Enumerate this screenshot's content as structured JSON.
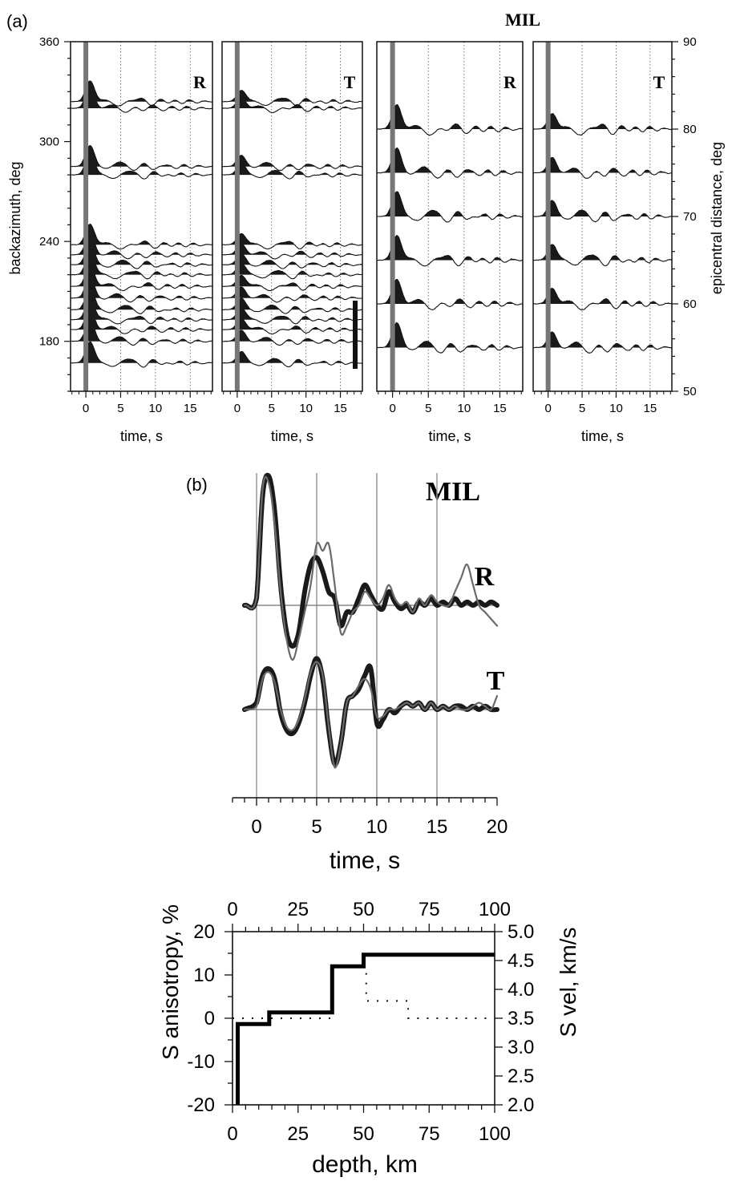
{
  "chart_data": [
    {
      "panel_label": "(a)",
      "type": "line",
      "title": "MIL",
      "subpanels": [
        {
          "component": "R",
          "xlabel": "time, s",
          "xlim": [
            -2.2,
            18.2
          ],
          "xticks": [
            0,
            5,
            10,
            15
          ],
          "ylabel": "backazimuth, deg",
          "ylim": [
            150,
            360
          ],
          "yticks": [
            180,
            240,
            300,
            360
          ],
          "trace_baselines": [
            167,
            180,
            187,
            193,
            199,
            206,
            213,
            220,
            226,
            232,
            238,
            280,
            285,
            320,
            324
          ]
        },
        {
          "component": "T",
          "xlabel": "time, s",
          "xlim": [
            -2.2,
            18.2
          ],
          "xticks": [
            0,
            5,
            10,
            15
          ],
          "ylim": [
            150,
            360
          ],
          "trace_baselines": [
            167,
            180,
            187,
            193,
            199,
            206,
            213,
            220,
            226,
            232,
            238,
            280,
            285,
            320,
            324
          ]
        },
        {
          "component": "R",
          "xlabel": "time, s",
          "xlim": [
            -2.2,
            18.2
          ],
          "xticks": [
            0,
            5,
            10,
            15
          ],
          "ylim": [
            50,
            90
          ],
          "trace_baselines": [
            55,
            60,
            65,
            70,
            75,
            80
          ]
        },
        {
          "component": "T",
          "xlabel": "time, s",
          "xlim": [
            -2.2,
            18.2
          ],
          "xticks": [
            0,
            5,
            10,
            15
          ],
          "ylabel": "epicentral distance, deg",
          "ylim": [
            50,
            90
          ],
          "yticks": [
            50,
            60,
            70,
            80,
            90
          ],
          "trace_baselines": [
            55,
            60,
            65,
            70,
            75,
            80
          ]
        }
      ]
    },
    {
      "panel_label": "(b)",
      "type": "line",
      "title": "MIL",
      "xlabel": "time, s",
      "xlim": [
        -2,
        20
      ],
      "xticks": [
        0,
        5,
        10,
        15,
        20
      ],
      "series": [
        {
          "component": "R",
          "kind": "observed",
          "x": [
            -1,
            0,
            0.5,
            1,
            1.5,
            2,
            2.5,
            3,
            3.5,
            4,
            4.5,
            5,
            5.5,
            6,
            6.5,
            7,
            7.5,
            8,
            8.5,
            9,
            9.5,
            10,
            10.5,
            11,
            11.5,
            12,
            12.5,
            13,
            13.5,
            14,
            14.5,
            15,
            15.5,
            16,
            16.5,
            17,
            17.5,
            18,
            18.5,
            19,
            19.5,
            20
          ],
          "y": [
            0,
            0.1,
            1.6,
            1.9,
            1.4,
            0.3,
            -0.4,
            -0.6,
            -0.4,
            0.2,
            0.6,
            0.7,
            0.5,
            0.2,
            0.1,
            -0.3,
            -0.1,
            -0.1,
            0.1,
            0.3,
            0.15,
            0,
            -0.05,
            0.2,
            0.05,
            -0.05,
            0,
            -0.1,
            0.05,
            0,
            0.1,
            0,
            0.05,
            0,
            0.1,
            0,
            0.05,
            0,
            0.05,
            0,
            0.05,
            0
          ]
        },
        {
          "component": "R",
          "kind": "synthetic",
          "x": [
            -1,
            0,
            0.5,
            1,
            1.5,
            2,
            2.5,
            3,
            3.5,
            4,
            4.5,
            5,
            5.5,
            6,
            6.5,
            7,
            7.5,
            8,
            8.5,
            9,
            9.5,
            10,
            10.5,
            11,
            11.5,
            12,
            12.5,
            13,
            13.5,
            14,
            14.5,
            15,
            15.5,
            16,
            16.5,
            17,
            17.5,
            18,
            18.5,
            19,
            19.5,
            20
          ],
          "y": [
            0,
            0.1,
            1.7,
            1.8,
            1.2,
            0.2,
            -0.5,
            -0.8,
            -0.5,
            -0.1,
            0.3,
            0.9,
            0.8,
            0.9,
            0.3,
            -0.4,
            -0.3,
            -0.1,
            0.0,
            0.2,
            0.1,
            0,
            0.1,
            0.3,
            0.1,
            0,
            0.05,
            -0.1,
            0.1,
            0,
            0.15,
            0.05,
            0,
            0,
            0.2,
            0.4,
            0.6,
            0.3,
            0,
            -0.1,
            -0.2,
            -0.3
          ]
        },
        {
          "component": "T",
          "kind": "observed",
          "x": [
            -1,
            0,
            0.5,
            1,
            1.5,
            2,
            2.5,
            3,
            3.5,
            4,
            4.5,
            5,
            5.5,
            6,
            6.5,
            7,
            7.5,
            8,
            8.5,
            9,
            9.5,
            10,
            10.5,
            11,
            11.5,
            12,
            12.5,
            13,
            13.5,
            14,
            14.5,
            15,
            15.5,
            16,
            16.5,
            17,
            17.5,
            18,
            18.5,
            19,
            19.5,
            20
          ],
          "y": [
            0,
            0.1,
            0.5,
            0.6,
            0.45,
            -0.05,
            -0.3,
            -0.35,
            -0.2,
            0.1,
            0.5,
            0.75,
            0.45,
            -0.3,
            -0.8,
            -0.5,
            0.1,
            0.2,
            0.3,
            0.5,
            0.6,
            -0.2,
            -0.15,
            0,
            -0.05,
            0.05,
            0.1,
            0.05,
            0.1,
            0,
            0.1,
            0,
            0.05,
            0,
            0.05,
            0.05,
            0,
            0.05,
            0,
            0.05,
            0,
            0
          ]
        },
        {
          "component": "T",
          "kind": "synthetic",
          "x": [
            -1,
            0,
            0.5,
            1,
            1.5,
            2,
            2.5,
            3,
            3.5,
            4,
            4.5,
            5,
            5.5,
            6,
            6.5,
            7,
            7.5,
            8,
            8.5,
            9,
            9.5,
            10,
            10.5,
            11,
            11.5,
            12,
            12.5,
            13,
            13.5,
            14,
            14.5,
            15,
            15.5,
            16,
            16.5,
            17,
            17.5,
            18,
            18.5,
            19,
            19.5,
            20
          ],
          "y": [
            0,
            0.05,
            0.45,
            0.55,
            0.4,
            0,
            -0.25,
            -0.3,
            -0.15,
            0.15,
            0.55,
            0.7,
            0.5,
            -0.25,
            -0.85,
            -0.5,
            0.1,
            0.2,
            0.35,
            0.45,
            0.3,
            -0.1,
            -0.1,
            0,
            0,
            0.05,
            0.1,
            0.05,
            0.1,
            0,
            0.1,
            0,
            0.05,
            0,
            0.05,
            0,
            0,
            0.05,
            0.1,
            0.05,
            0,
            0.2
          ]
        }
      ]
    },
    {
      "type": "line",
      "xlabel": "depth, km",
      "xlim": [
        0,
        100
      ],
      "xticks": [
        0,
        25,
        50,
        75,
        100
      ],
      "ylabel": "S anisotropy, %",
      "ylim": [
        -20,
        20
      ],
      "yticks": [
        -20,
        -10,
        0,
        10,
        20
      ],
      "y2label": "S vel, km/s",
      "y2lim": [
        2.0,
        5.0
      ],
      "y2ticks": [
        "2.0",
        "2.5",
        "3.0",
        "3.5",
        "4.0",
        "4.5",
        "5.0"
      ],
      "series": [
        {
          "kind": "S velocity (solid)",
          "x": [
            2,
            2,
            14,
            14,
            38,
            38,
            50,
            50,
            100
          ],
          "y": [
            2.0,
            3.4,
            3.4,
            3.6,
            3.6,
            4.4,
            4.4,
            4.6,
            4.6
          ]
        },
        {
          "kind": "S anisotropy (dotted)",
          "x": [
            0,
            38,
            38,
            51,
            51,
            67,
            67,
            100
          ],
          "y": [
            0,
            0,
            12,
            12,
            4,
            4,
            0,
            0
          ]
        }
      ]
    }
  ]
}
